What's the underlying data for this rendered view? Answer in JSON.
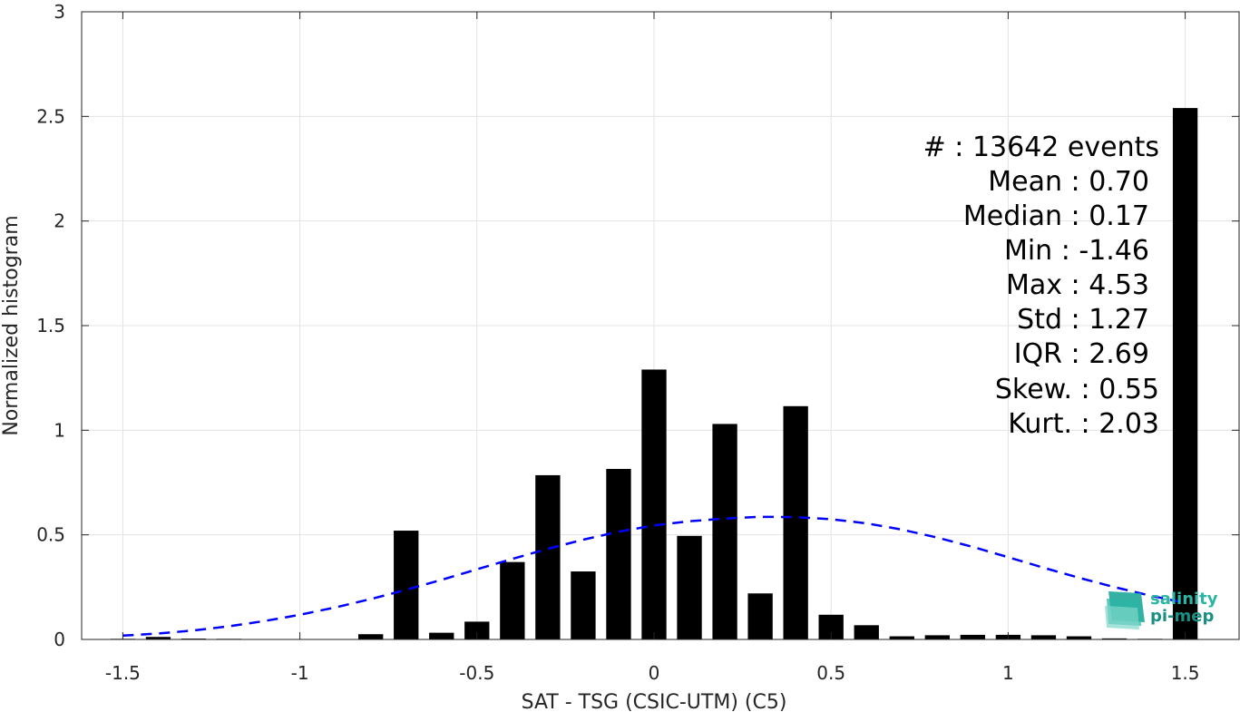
{
  "chart_data": {
    "type": "bar",
    "xlabel": "SAT - TSG (CSIC-UTM) (C5)",
    "ylabel": "Normalized histogram",
    "xlim": [
      -1.6,
      1.6
    ],
    "ylim": [
      0,
      3
    ],
    "xticks": [
      -1.5,
      -1,
      -0.5,
      0,
      0.5,
      1,
      1.5
    ],
    "xtick_labels": [
      "-1.5",
      "-1",
      "-0.5",
      "0",
      "0.5",
      "1",
      "1.5"
    ],
    "yticks": [
      0,
      0.5,
      1,
      1.5,
      2,
      2.5,
      3
    ],
    "ytick_labels": [
      "0",
      "0.5",
      "1",
      "1.5",
      "2",
      "2.5",
      "3"
    ],
    "grid": true,
    "bar_width": 0.07,
    "bars": {
      "x": [
        -1.5,
        -1.4,
        -1.3,
        -1.2,
        -1.1,
        -1.0,
        -0.9,
        -0.8,
        -0.7,
        -0.6,
        -0.5,
        -0.4,
        -0.3,
        -0.2,
        -0.1,
        0.0,
        0.1,
        0.2,
        0.3,
        0.4,
        0.5,
        0.6,
        0.7,
        0.8,
        0.9,
        1.0,
        1.1,
        1.2,
        1.3,
        1.4,
        1.5
      ],
      "values": [
        0.003,
        0.012,
        0.004,
        0.003,
        0.001,
        0.001,
        0.001,
        0.025,
        0.52,
        0.032,
        0.085,
        0.37,
        0.785,
        0.325,
        0.815,
        1.29,
        0.495,
        1.03,
        0.22,
        1.115,
        0.118,
        0.068,
        0.015,
        0.02,
        0.022,
        0.022,
        0.02,
        0.015,
        0.005,
        0.003,
        2.54
      ],
      "color": "#000000"
    },
    "fit_curve": {
      "style": "dashed",
      "color": "#0000ff",
      "mean": 0.36,
      "std": 0.68,
      "x": [
        -1.5,
        -1.4,
        -1.3,
        -1.2,
        -1.1,
        -1.0,
        -0.9,
        -0.8,
        -0.7,
        -0.6,
        -0.5,
        -0.4,
        -0.3,
        -0.2,
        -0.1,
        0.0,
        0.1,
        0.2,
        0.3,
        0.4,
        0.5,
        0.6,
        0.7,
        0.8,
        0.9,
        1.0,
        1.1,
        1.2,
        1.3,
        1.4,
        1.5
      ],
      "y": [
        0.018,
        0.028,
        0.043,
        0.063,
        0.088,
        0.118,
        0.153,
        0.193,
        0.237,
        0.285,
        0.335,
        0.385,
        0.433,
        0.477,
        0.515,
        0.545,
        0.565,
        0.578,
        0.586,
        0.585,
        0.575,
        0.555,
        0.525,
        0.487,
        0.442,
        0.393,
        0.343,
        0.295,
        0.25,
        0.21,
        0.175
      ]
    },
    "stats": [
      "#  : 13642 events",
      "Mean : 0.70",
      "Median : 0.17",
      "Min : -1.46",
      "Max : 4.53",
      "Std : 1.27",
      "IQR : 2.69",
      "Skew. : 0.55",
      "Kurt. : 2.03"
    ]
  },
  "logo": {
    "line1": "salinity",
    "line2": "pi-mep",
    "colors": [
      "#1fa99a",
      "#2bb5a5",
      "#7fd6c9"
    ]
  }
}
